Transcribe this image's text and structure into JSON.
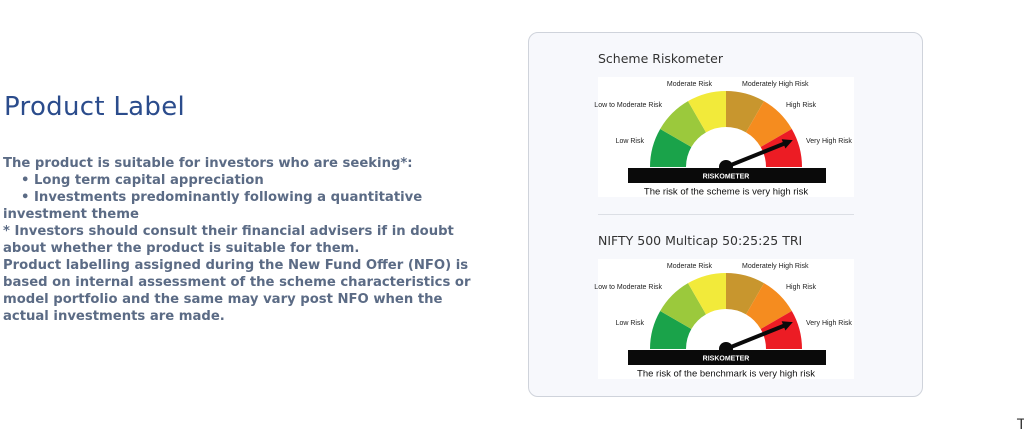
{
  "product_label": {
    "title": "Product Label",
    "lines": [
      "The product is suitable for investors who are seeking*:",
      "• Long term capital appreciation",
      "• Investments predominantly following a quantitative",
      "investment theme",
      "* Investors should consult their financial advisers if in doubt",
      "about whether the product is suitable for them.",
      "Product labelling assigned during the New Fund Offer (NFO) is",
      "based on internal assessment of the scheme characteristics or",
      "model portfolio and the same may vary post NFO when the",
      "actual investments are made."
    ]
  },
  "riskometer_levels": [
    {
      "label": "Low Risk",
      "color": "#1aa34a"
    },
    {
      "label": "Low to Moderate Risk",
      "color": "#9bc93c"
    },
    {
      "label": "Moderate Risk",
      "color": "#f2ea3a"
    },
    {
      "label": "Moderately High Risk",
      "color": "#c8962e"
    },
    {
      "label": "High Risk",
      "color": "#f58c1f"
    },
    {
      "label": "Very High Risk",
      "color": "#ec1c24"
    }
  ],
  "meters": [
    {
      "title": "Scheme Riskometer",
      "bar_label": "RISKOMETER",
      "caption": "The risk of the scheme is very high risk",
      "level_index": 5
    },
    {
      "title": "NIFTY 500 Multicap 50:25:25 TRI",
      "bar_label": "RISKOMETER",
      "caption": "The risk of the benchmark is very high risk",
      "level_index": 5
    }
  ],
  "stray_text": "T"
}
